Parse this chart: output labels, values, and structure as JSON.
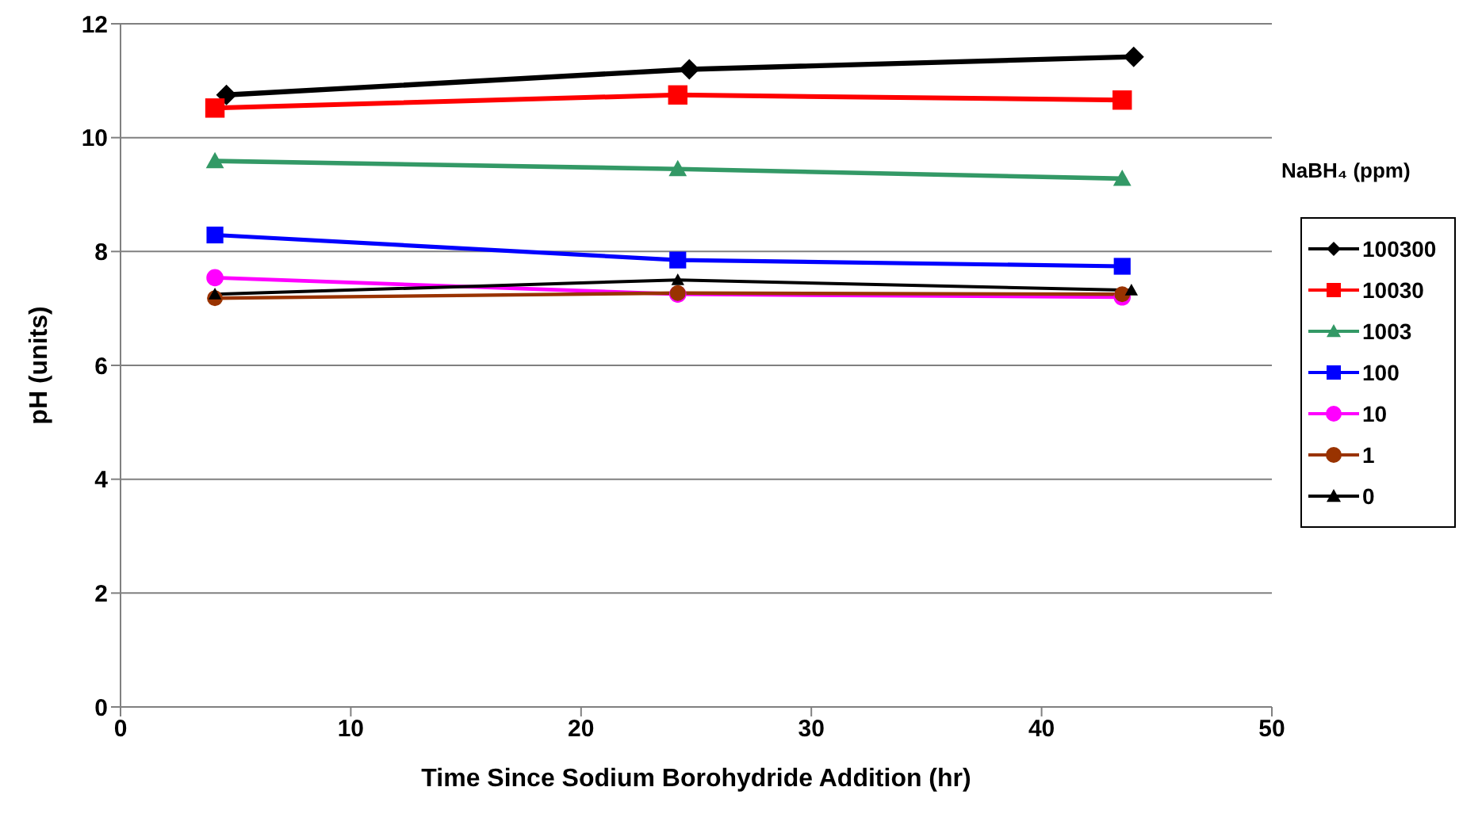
{
  "chart_data": {
    "type": "line",
    "xlabel": "Time Since Sodium Borohydride Addition (hr)",
    "ylabel": "pH (units)",
    "legend_title": "NaBH₄ (ppm)",
    "xlim": [
      0,
      50
    ],
    "xticks": [
      0,
      10,
      20,
      30,
      40,
      50
    ],
    "ylim": [
      0,
      12
    ],
    "yticks": [
      0,
      2,
      4,
      6,
      8,
      10,
      12
    ],
    "grid": "y",
    "legend": "right",
    "series": [
      {
        "name": "100300",
        "color": "#000000",
        "marker": "diamond",
        "x": [
          4.6,
          24.7,
          44.0
        ],
        "values": [
          10.75,
          11.2,
          11.42
        ]
      },
      {
        "name": "10030",
        "color": "#ff0000",
        "marker": "square",
        "x": [
          4.1,
          24.2,
          43.5
        ],
        "values": [
          10.52,
          10.75,
          10.66
        ]
      },
      {
        "name": "1003",
        "color": "#339966",
        "marker": "triangle",
        "x": [
          4.1,
          24.2,
          43.5
        ],
        "values": [
          9.59,
          9.45,
          9.28
        ]
      },
      {
        "name": "100",
        "color": "#0000ff",
        "marker": "square",
        "x": [
          4.1,
          24.2,
          43.5
        ],
        "values": [
          8.29,
          7.85,
          7.74
        ]
      },
      {
        "name": "10",
        "color": "#ff00ff",
        "marker": "circle",
        "x": [
          4.1,
          24.2,
          43.5
        ],
        "values": [
          7.54,
          7.25,
          7.2
        ]
      },
      {
        "name": "1",
        "color": "#993300",
        "marker": "circle",
        "x": [
          4.1,
          24.2,
          43.5
        ],
        "values": [
          7.18,
          7.27,
          7.25
        ]
      },
      {
        "name": "0",
        "color": "#000000",
        "marker": "triangle",
        "x": [
          4.1,
          24.2,
          43.9
        ],
        "values": [
          7.25,
          7.5,
          7.32
        ]
      }
    ]
  }
}
